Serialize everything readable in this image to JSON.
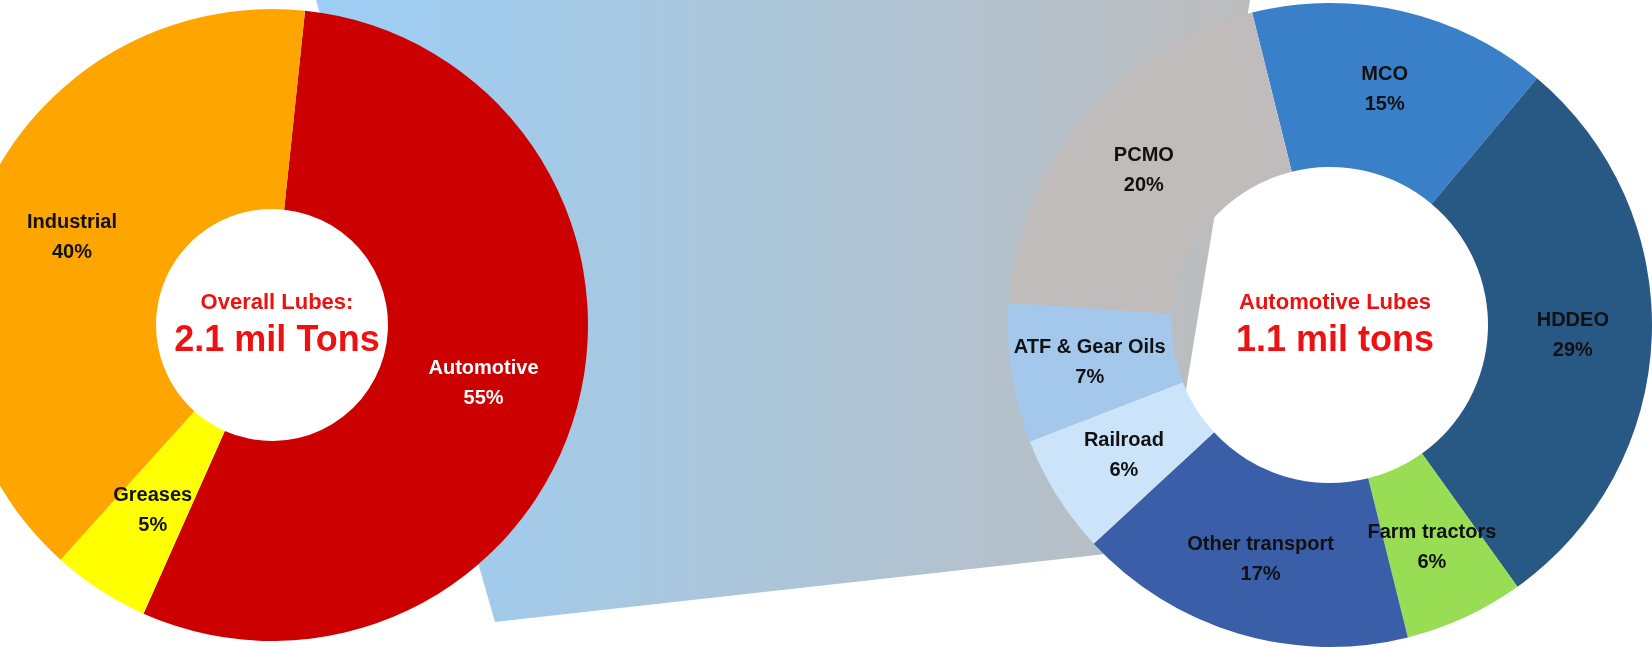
{
  "chart_data": [
    {
      "type": "donut",
      "title": "Overall Lubes:",
      "subtitle": "2.1 mil Tons",
      "categories": [
        "Automotive",
        "Greases",
        "Industrial"
      ],
      "values": [
        55,
        5,
        40
      ],
      "value_labels": [
        "55%",
        "5%",
        "40%"
      ],
      "colors": [
        "#cc0000",
        "#ffff00",
        "#ffa500"
      ]
    },
    {
      "type": "donut",
      "title": "Automotive Lubes",
      "subtitle": "1.1 mil tons",
      "categories": [
        "MCO",
        "HDDEO",
        "Farm tractors",
        "Other transport",
        "Railroad",
        "ATF & Gear Oils",
        "PCMO"
      ],
      "values": [
        15,
        29,
        6,
        17,
        6,
        7,
        20
      ],
      "value_labels": [
        "15%",
        "29%",
        "6%",
        "17%",
        "6%",
        "7%",
        "20%"
      ],
      "colors": [
        "#3a80c8",
        "#285884",
        "#99dd55",
        "#3a5fa8",
        "#cce4fa",
        "#a4c8ec",
        "#c0bcbc"
      ]
    }
  ]
}
